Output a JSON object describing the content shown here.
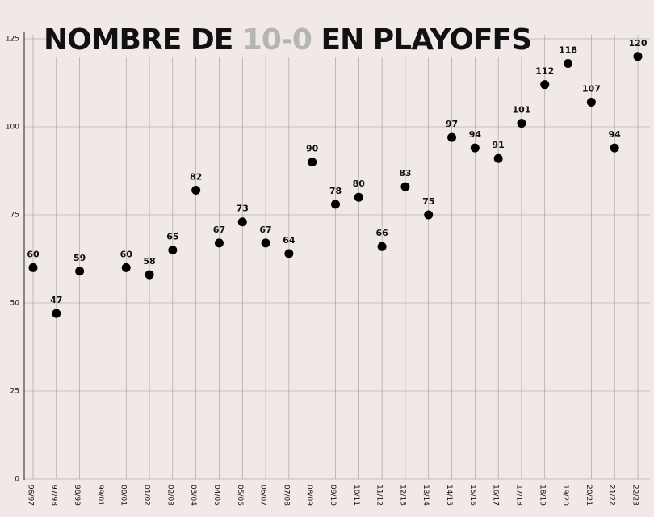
{
  "chart_data": {
    "type": "scatter",
    "title": [
      "NOMBRE DE",
      "10-0",
      "EN PLAYOFFS"
    ],
    "categories": [
      "96/97",
      "97/98",
      "98/99",
      "99/01",
      "00/01",
      "01/02",
      "02/03",
      "03/04",
      "04/05",
      "05/06",
      "06/07",
      "07/08",
      "08/09",
      "09/10",
      "10/11",
      "11/12",
      "12/13",
      "13/14",
      "14/15",
      "15/16",
      "16/17",
      "17/18",
      "18/19",
      "19/20",
      "20/21",
      "21/22",
      "22/23"
    ],
    "values": [
      60,
      47,
      59,
      null,
      60,
      58,
      65,
      82,
      67,
      73,
      67,
      64,
      90,
      78,
      80,
      66,
      83,
      75,
      97,
      94,
      91,
      101,
      112,
      118,
      107,
      94,
      120
    ],
    "color": "#000000",
    "ylim": [
      0,
      125
    ],
    "yticks": [
      0,
      25,
      50,
      75,
      100,
      125
    ],
    "grid": true
  }
}
